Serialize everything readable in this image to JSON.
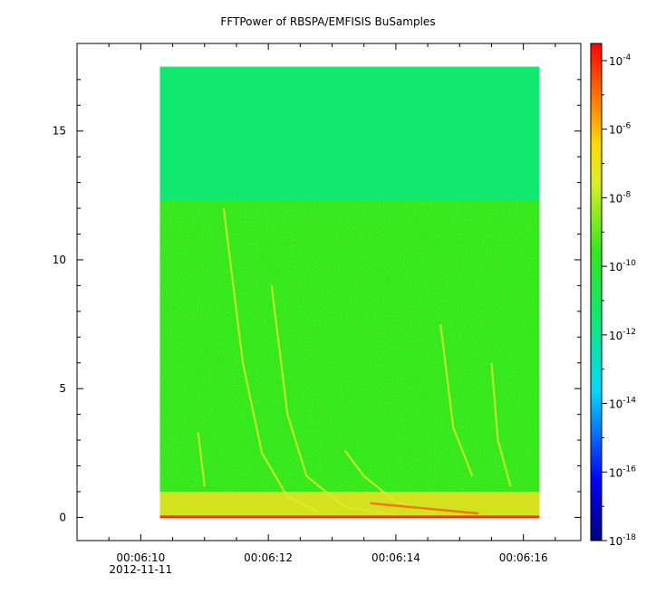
{
  "chart_data": {
    "type": "heatmap",
    "title": "FFTPower of RBSPA/EMFISIS  BuSamples",
    "xlabel": "",
    "ylabel": "",
    "x_ticks": [
      {
        "value": "00:06:10",
        "sub": "2012-11-11"
      },
      {
        "value": "00:06:12",
        "sub": ""
      },
      {
        "value": "00:06:14",
        "sub": ""
      },
      {
        "value": "00:06:16",
        "sub": ""
      }
    ],
    "xlim_seconds": [
      369.0,
      376.9
    ],
    "data_x_range_seconds": [
      370.3,
      376.25
    ],
    "y_ticks": [
      0,
      5,
      10,
      15
    ],
    "ylim": [
      -0.9,
      18.4
    ],
    "data_y_range": [
      0,
      17.5
    ],
    "upper_band_start": 12.3,
    "colorbar": {
      "scale": "log",
      "range": [
        -18,
        -3.5
      ],
      "ticks": [
        {
          "base": "10",
          "exp": "-4"
        },
        {
          "base": "10",
          "exp": "-6"
        },
        {
          "base": "10",
          "exp": "-8"
        },
        {
          "base": "10",
          "exp": "-10"
        },
        {
          "base": "10",
          "exp": "-12"
        },
        {
          "base": "10",
          "exp": "-14"
        },
        {
          "base": "10",
          "exp": "-16"
        },
        {
          "base": "10",
          "exp": "-18"
        }
      ]
    },
    "colors": {
      "upper_band": "#10e870",
      "lower_band": "#33e81c",
      "floor": "#f0e020",
      "baseline": "#ff3000"
    }
  }
}
